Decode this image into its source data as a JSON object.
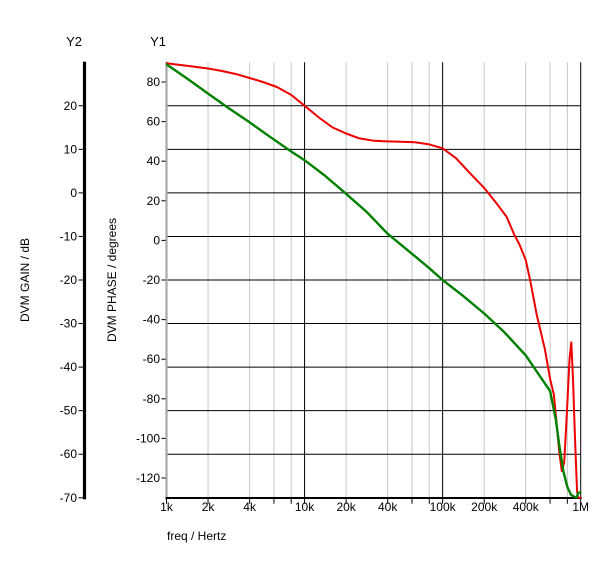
{
  "header": {
    "y2_label": "Y2",
    "y1_label": "Y1"
  },
  "colors": {
    "background": "#ffffff",
    "phase_curve": "#ee0000",
    "gain_curve": "#008000",
    "minor_grid": "#c6c6c6",
    "major_grid": "#000000",
    "y1_axis_bar": "#a8a8a8",
    "y2_axis_bar": "#000000",
    "text": "#000000"
  },
  "chart_data": {
    "type": "line",
    "title": "",
    "x_axis": {
      "label": "freq / Hertz",
      "scale": "log",
      "min": 1000,
      "max": 1000000,
      "ticks": [
        {
          "f": 1000,
          "label": "1k",
          "style": "edge-left"
        },
        {
          "f": 2000,
          "label": "2k",
          "style": "minor"
        },
        {
          "f": 4000,
          "label": "4k",
          "style": "minor"
        },
        {
          "f": 6000,
          "label": "",
          "style": "minor"
        },
        {
          "f": 8000,
          "label": "",
          "style": "minor"
        },
        {
          "f": 10000,
          "label": "10k",
          "style": "major"
        },
        {
          "f": 20000,
          "label": "20k",
          "style": "minor"
        },
        {
          "f": 40000,
          "label": "40k",
          "style": "minor"
        },
        {
          "f": 60000,
          "label": "",
          "style": "minor"
        },
        {
          "f": 80000,
          "label": "",
          "style": "minor"
        },
        {
          "f": 100000,
          "label": "100k",
          "style": "major"
        },
        {
          "f": 200000,
          "label": "200k",
          "style": "minor"
        },
        {
          "f": 400000,
          "label": "400k",
          "style": "minor"
        },
        {
          "f": 600000,
          "label": "",
          "style": "minor"
        },
        {
          "f": 800000,
          "label": "",
          "style": "minor"
        },
        {
          "f": 1000000,
          "label": "1M",
          "style": "edge-right"
        }
      ]
    },
    "y1_axis": {
      "label": "DVM PHASE / degrees",
      "top": 90,
      "bottom": -130,
      "tick_step": 20,
      "ticks": [
        80,
        60,
        40,
        20,
        0,
        -20,
        -40,
        -60,
        -80,
        -100,
        -120
      ],
      "gridlines": false
    },
    "y2_axis": {
      "label": "DVM GAIN / dB",
      "top": 30,
      "bottom": -70,
      "tick_step": 10,
      "ticks": [
        20,
        10,
        0,
        -10,
        -20,
        -30,
        -40,
        -50,
        -60,
        -70
      ],
      "gridlines": true
    },
    "legend": "none",
    "series": [
      {
        "name": "DVM PHASE",
        "axis": "y1",
        "color": "#ee0000",
        "points": [
          [
            1000,
            89.5
          ],
          [
            1200,
            88.8
          ],
          [
            1500,
            88.0
          ],
          [
            2000,
            86.8
          ],
          [
            2500,
            85.6
          ],
          [
            3200,
            84.0
          ],
          [
            4000,
            82.0
          ],
          [
            5000,
            80.0
          ],
          [
            6300,
            77.5
          ],
          [
            8000,
            73.5
          ],
          [
            10000,
            68.0
          ],
          [
            13000,
            61.5
          ],
          [
            16000,
            57.0
          ],
          [
            20000,
            54.0
          ],
          [
            25000,
            51.5
          ],
          [
            32000,
            50.3
          ],
          [
            40000,
            50.0
          ],
          [
            50000,
            49.8
          ],
          [
            63000,
            49.6
          ],
          [
            80000,
            48.5
          ],
          [
            100000,
            46.5
          ],
          [
            125000,
            41.5
          ],
          [
            160000,
            33.5
          ],
          [
            200000,
            26.5
          ],
          [
            250000,
            18.0
          ],
          [
            290000,
            12.0
          ],
          [
            330000,
            3.0
          ],
          [
            360000,
            -2.0
          ],
          [
            400000,
            -10.0
          ],
          [
            430000,
            -20.0
          ],
          [
            480000,
            -37.5
          ],
          [
            550000,
            -55.0
          ],
          [
            600000,
            -70.0
          ],
          [
            640000,
            -78.0
          ],
          [
            670000,
            -93.0
          ],
          [
            700000,
            -107.0
          ],
          [
            730000,
            -116.5
          ],
          [
            760000,
            -112.0
          ],
          [
            790000,
            -90.0
          ],
          [
            830000,
            -60.0
          ],
          [
            855000,
            -51.5
          ],
          [
            880000,
            -70.0
          ],
          [
            910000,
            -100.0
          ],
          [
            940000,
            -126.0
          ],
          [
            955000,
            -130.0
          ],
          [
            1000000,
            -130.0
          ]
        ]
      },
      {
        "name": "DVM GAIN",
        "axis": "y2",
        "color": "#008000",
        "points": [
          [
            1000,
            29.5
          ],
          [
            1400,
            26.3
          ],
          [
            2000,
            22.8
          ],
          [
            2800,
            19.5
          ],
          [
            4000,
            16.2
          ],
          [
            5600,
            12.9
          ],
          [
            8000,
            9.5
          ],
          [
            10000,
            7.5
          ],
          [
            14000,
            4.0
          ],
          [
            20000,
            -0.2
          ],
          [
            28000,
            -4.3
          ],
          [
            40000,
            -9.4
          ],
          [
            56000,
            -13.2
          ],
          [
            80000,
            -17.3
          ],
          [
            100000,
            -20.0
          ],
          [
            140000,
            -23.6
          ],
          [
            200000,
            -27.7
          ],
          [
            280000,
            -32.0
          ],
          [
            400000,
            -37.3
          ],
          [
            480000,
            -41.0
          ],
          [
            600000,
            -45.5
          ],
          [
            660000,
            -52.0
          ],
          [
            700000,
            -58.0
          ],
          [
            750000,
            -64.0
          ],
          [
            800000,
            -67.5
          ],
          [
            850000,
            -69.3
          ],
          [
            900000,
            -69.8
          ],
          [
            935000,
            -69.9
          ],
          [
            960000,
            -68.8
          ],
          [
            1000000,
            -68.8
          ]
        ]
      }
    ]
  }
}
